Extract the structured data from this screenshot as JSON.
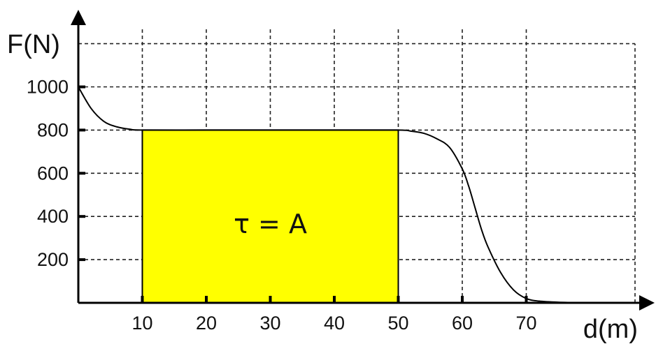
{
  "chart_data": {
    "type": "line",
    "xlabel": "d(m)",
    "ylabel": "F(N)",
    "x_ticks": [
      10,
      20,
      30,
      40,
      50,
      60,
      70
    ],
    "y_ticks": [
      200,
      400,
      600,
      800,
      1000
    ],
    "grid": true,
    "series": [
      {
        "x": [
          0,
          2,
          4,
          6,
          8,
          10,
          20,
          30,
          40,
          50,
          52,
          54,
          56,
          58,
          60,
          61,
          62,
          63,
          64,
          66,
          68,
          70,
          72,
          75,
          80
        ],
        "y": [
          1000,
          900,
          840,
          815,
          804,
          800,
          800,
          800,
          800,
          800,
          795,
          785,
          760,
          720,
          620,
          540,
          440,
          340,
          260,
          140,
          60,
          20,
          8,
          3,
          0
        ]
      }
    ],
    "shaded_area": {
      "x_range": [
        10,
        50
      ],
      "y_range": [
        0,
        800
      ],
      "label": "τ = A",
      "color": "#ffff00"
    }
  }
}
